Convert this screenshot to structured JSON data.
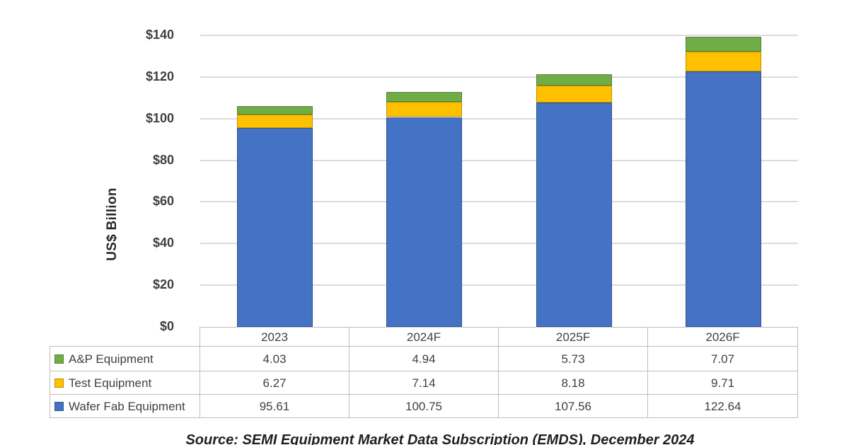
{
  "chart_data": {
    "type": "bar",
    "stacked": true,
    "ylabel": "US$ Billion",
    "ylim": [
      0,
      140
    ],
    "grid": true,
    "gridline_color": "#DBDBDB",
    "legend_position": "table-left",
    "value_decimals": 2,
    "yticks": [
      {
        "label": "$0",
        "value": 0
      },
      {
        "label": "$20",
        "value": 20
      },
      {
        "label": "$40",
        "value": 40
      },
      {
        "label": "$60",
        "value": 60
      },
      {
        "label": "$80",
        "value": 80
      },
      {
        "label": "$100",
        "value": 100
      },
      {
        "label": "$120",
        "value": 120
      },
      {
        "label": "$140",
        "value": 140
      }
    ],
    "categories": [
      "2023",
      "2024F",
      "2025F",
      "2026F"
    ],
    "series": [
      {
        "name": "Wafer Fab Equipment",
        "color": "#4472C4",
        "border": "#2F528F",
        "values": [
          95.61,
          100.75,
          107.56,
          122.64
        ]
      },
      {
        "name": "Test Equipment",
        "color": "#FFC000",
        "border": "#BF9000",
        "values": [
          6.27,
          7.14,
          8.18,
          9.71
        ]
      },
      {
        "name": "A&P Equipment",
        "color": "#70AD47",
        "border": "#548235",
        "values": [
          4.03,
          4.94,
          5.73,
          7.07
        ]
      }
    ],
    "table_row_order_top_to_bottom": [
      "A&P Equipment",
      "Test Equipment",
      "Wafer Fab Equipment"
    ]
  },
  "source": {
    "text": "Source: SEMI Equipment Market Data Subscription (EMDS), December 2024"
  }
}
